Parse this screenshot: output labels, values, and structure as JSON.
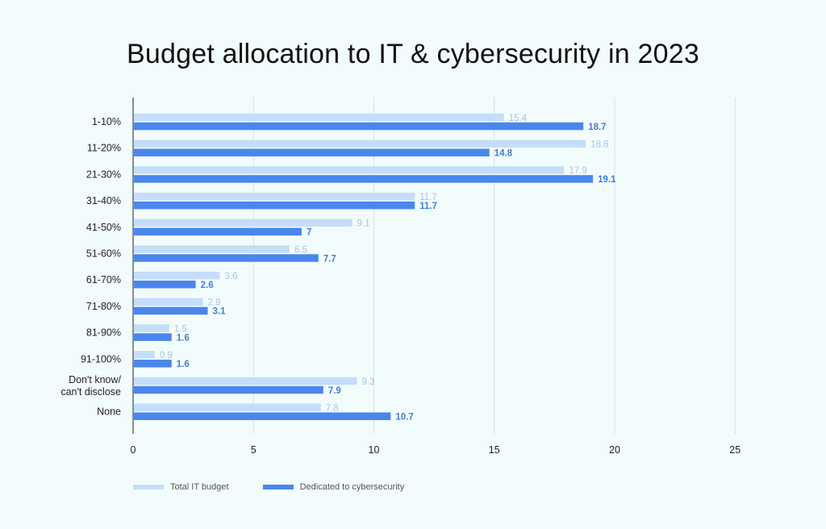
{
  "chart_data": {
    "type": "bar",
    "orientation": "horizontal",
    "title": "Budget allocation to IT & cybersecurity in 2023",
    "xlabel": "",
    "ylabel": "",
    "xlim": [
      0,
      25
    ],
    "xticks": [
      0,
      5,
      10,
      15,
      20,
      25
    ],
    "grid": "vertical",
    "legend_position": "bottom-left",
    "categories": [
      "1-10%",
      "11-20%",
      "21-30%",
      "31-40%",
      "41-50%",
      "51-60%",
      "61-70%",
      "71-80%",
      "81-90%",
      "91-100%",
      "Don't know/ can't disclose",
      "None"
    ],
    "series": [
      {
        "name": "Total IT budget",
        "color": "#c4ddfa",
        "label_color": "#a4c2ea",
        "values": [
          15.4,
          18.8,
          17.9,
          11.7,
          9.1,
          6.5,
          3.6,
          2.9,
          1.5,
          0.9,
          9.3,
          7.8
        ],
        "value_labels": [
          "15.4",
          "18.8",
          "17.9",
          "11.7",
          "9.1",
          "6.5",
          "3.6",
          "2.9",
          "1.5",
          "0.9",
          "9.3",
          "7.8"
        ]
      },
      {
        "name": "Dedicated to cybersecurity",
        "color": "#4a86ec",
        "label_color": "#3f7fd4",
        "values": [
          18.7,
          14.8,
          19.1,
          11.7,
          7,
          7.7,
          2.6,
          3.1,
          1.6,
          1.6,
          7.9,
          10.7
        ],
        "value_labels": [
          "18.7",
          "14.8",
          "19.1",
          "11.7",
          "7",
          "7.7",
          "2.6",
          "3.1",
          "1.6",
          "1.6",
          "7.9",
          "10.7"
        ]
      }
    ]
  },
  "colors": {
    "background": "#f3fcfd",
    "gridline": "#d5e2e5",
    "axis": "#444444"
  }
}
